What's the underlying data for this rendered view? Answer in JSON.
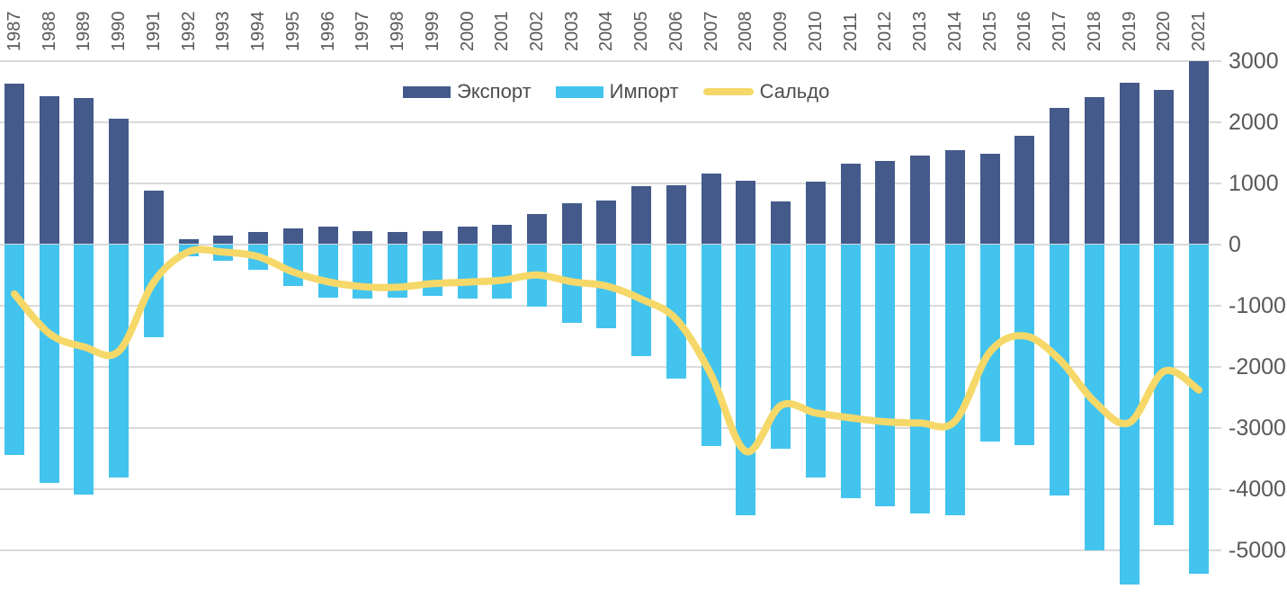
{
  "legend": {
    "position": "top"
  },
  "axis_text_color": "#595959",
  "legend_text_color": "#4d4d4d",
  "gridline_color": "#d9d9d9",
  "y_axis": {
    "ticks": [
      3000,
      2000,
      1000,
      0,
      -1000,
      -2000,
      -3000,
      -4000,
      -5000
    ]
  },
  "chart_data": {
    "type": "bar",
    "title": "",
    "xlabel": "",
    "ylabel": "",
    "ylim": [
      -5000,
      3000
    ],
    "grid": true,
    "legend_position": "top-center",
    "x_labels_position": "top",
    "x_labels_rotation": 90,
    "categories": [
      1987,
      1988,
      1989,
      1990,
      1991,
      1992,
      1993,
      1994,
      1995,
      1996,
      1997,
      1998,
      1999,
      2000,
      2001,
      2002,
      2003,
      2004,
      2005,
      2006,
      2007,
      2008,
      2009,
      2010,
      2011,
      2012,
      2013,
      2014,
      2015,
      2016,
      2017,
      2018,
      2019,
      2020,
      2021
    ],
    "series": [
      {
        "name": "Экспорт",
        "type": "bar",
        "color": "#435a8b",
        "values": [
          2630,
          2425,
          2395,
          2055,
          880,
          75,
          135,
          205,
          255,
          285,
          220,
          200,
          220,
          285,
          315,
          490,
          670,
          720,
          955,
          965,
          1150,
          1040,
          700,
          1025,
          1320,
          1355,
          1455,
          1530,
          1480,
          1775,
          2230,
          2400,
          2635,
          2520,
          2990
        ]
      },
      {
        "name": "Импорт",
        "type": "bar",
        "color": "#42c4ee",
        "values": [
          -3450,
          -3910,
          -4100,
          -3820,
          -1515,
          -200,
          -265,
          -425,
          -680,
          -875,
          -895,
          -880,
          -840,
          -885,
          -885,
          -1015,
          -1285,
          -1370,
          -1825,
          -2200,
          -3300,
          -4430,
          -3350,
          -3810,
          -4150,
          -4280,
          -4400,
          -4440,
          -3230,
          -3280,
          -4110,
          -5000,
          -5560,
          -4600,
          -5390
        ]
      },
      {
        "name": "Сальдо",
        "type": "line",
        "color": "#f6d869",
        "values": [
          -815,
          -1460,
          -1680,
          -1750,
          -620,
          -125,
          -130,
          -205,
          -455,
          -615,
          -695,
          -705,
          -645,
          -620,
          -590,
          -505,
          -615,
          -685,
          -900,
          -1230,
          -2135,
          -3390,
          -2640,
          -2760,
          -2840,
          -2905,
          -2925,
          -2895,
          -1765,
          -1500,
          -1885,
          -2575,
          -2920,
          -2080,
          -2385
        ]
      }
    ]
  }
}
